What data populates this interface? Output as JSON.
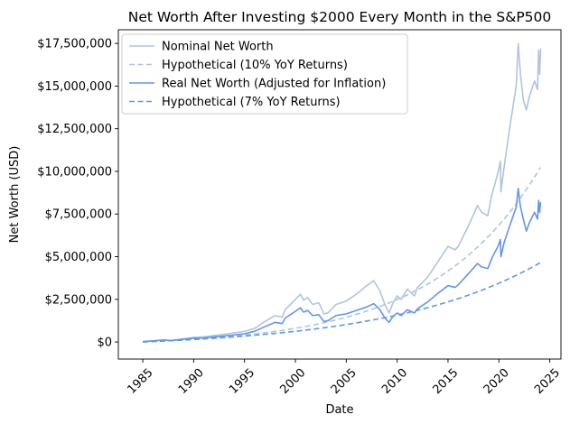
{
  "chart_data": {
    "type": "line",
    "title": "Net Worth After Investing $2000 Every Month in the S&P500",
    "xlabel": "Date",
    "ylabel": "Net Worth (USD)",
    "xlim": [
      1982.6,
      2026.1
    ],
    "ylim": [
      -1000000,
      18300000
    ],
    "x_ticks": [
      1985,
      1990,
      1995,
      2000,
      2005,
      2010,
      2015,
      2020,
      2025
    ],
    "x_tick_labels": [
      "1985",
      "1990",
      "1995",
      "2000",
      "2005",
      "2010",
      "2015",
      "2020",
      "2025"
    ],
    "y_ticks": [
      0,
      2500000,
      5000000,
      7500000,
      10000000,
      12500000,
      15000000,
      17500000
    ],
    "y_tick_labels": [
      "$0",
      "$2,500,000",
      "$5,000,000",
      "$7,500,000",
      "$10,000,000",
      "$12,500,000",
      "$15,000,000",
      "$17,500,000"
    ],
    "legend_position": "upper-left",
    "series": [
      {
        "name": "Nominal Net Worth",
        "color": "#b0c4de",
        "dash": "solid",
        "points": [
          [
            1985,
            20000
          ],
          [
            1987,
            120000
          ],
          [
            1987.8,
            90000
          ],
          [
            1990,
            270000
          ],
          [
            1991,
            300000
          ],
          [
            1993,
            450000
          ],
          [
            1995,
            620000
          ],
          [
            1996,
            800000
          ],
          [
            1997,
            1200000
          ],
          [
            1998,
            1550000
          ],
          [
            1998.7,
            1450000
          ],
          [
            1999,
            1900000
          ],
          [
            2000,
            2500000
          ],
          [
            2000.5,
            2800000
          ],
          [
            2000.8,
            2450000
          ],
          [
            2001.2,
            2600000
          ],
          [
            2001.7,
            2200000
          ],
          [
            2002.3,
            2300000
          ],
          [
            2002.8,
            1650000
          ],
          [
            2003.2,
            1700000
          ],
          [
            2004,
            2200000
          ],
          [
            2005,
            2400000
          ],
          [
            2006,
            2800000
          ],
          [
            2007,
            3300000
          ],
          [
            2007.7,
            3600000
          ],
          [
            2008.3,
            3000000
          ],
          [
            2008.8,
            2200000
          ],
          [
            2009.2,
            1700000
          ],
          [
            2009.6,
            2300000
          ],
          [
            2010,
            2700000
          ],
          [
            2010.4,
            2500000
          ],
          [
            2011,
            3100000
          ],
          [
            2011.7,
            2700000
          ],
          [
            2012,
            3200000
          ],
          [
            2013,
            3800000
          ],
          [
            2014,
            4700000
          ],
          [
            2015,
            5600000
          ],
          [
            2015.7,
            5400000
          ],
          [
            2016,
            5600000
          ],
          [
            2017,
            6800000
          ],
          [
            2017.9,
            8000000
          ],
          [
            2018.3,
            7600000
          ],
          [
            2018.9,
            7400000
          ],
          [
            2019.3,
            8600000
          ],
          [
            2019.9,
            9900000
          ],
          [
            2020.15,
            10600000
          ],
          [
            2020.2,
            8800000
          ],
          [
            2020.5,
            10200000
          ],
          [
            2021,
            12300000
          ],
          [
            2021.7,
            15000000
          ],
          [
            2021.9,
            17500000
          ],
          [
            2022.1,
            15800000
          ],
          [
            2022.4,
            14200000
          ],
          [
            2022.7,
            13600000
          ],
          [
            2023,
            14400000
          ],
          [
            2023.5,
            15300000
          ],
          [
            2023.8,
            14800000
          ],
          [
            2023.9,
            17100000
          ],
          [
            2024,
            15700000
          ],
          [
            2024.1,
            17200000
          ]
        ]
      },
      {
        "name": "Hypothetical (10% YoY Returns)",
        "color": "#b0c4de",
        "dash": "dashed",
        "formula_rate": 0.1
      },
      {
        "name": "Real Net Worth (Adjusted for Inflation)",
        "color": "#6495ed",
        "dash": "solid",
        "points": [
          [
            1985,
            20000
          ],
          [
            1987,
            110000
          ],
          [
            1987.8,
            85000
          ],
          [
            1990,
            220000
          ],
          [
            1991,
            240000
          ],
          [
            1993,
            350000
          ],
          [
            1995,
            480000
          ],
          [
            1996,
            630000
          ],
          [
            1997,
            900000
          ],
          [
            1998,
            1150000
          ],
          [
            1998.7,
            1080000
          ],
          [
            1999,
            1400000
          ],
          [
            2000,
            1800000
          ],
          [
            2000.5,
            2000000
          ],
          [
            2000.8,
            1750000
          ],
          [
            2001.2,
            1850000
          ],
          [
            2001.7,
            1550000
          ],
          [
            2002.3,
            1600000
          ],
          [
            2002.8,
            1200000
          ],
          [
            2003.2,
            1250000
          ],
          [
            2004,
            1550000
          ],
          [
            2005,
            1650000
          ],
          [
            2006,
            1850000
          ],
          [
            2007,
            2050000
          ],
          [
            2007.7,
            2250000
          ],
          [
            2008.3,
            1900000
          ],
          [
            2008.8,
            1400000
          ],
          [
            2009.2,
            1150000
          ],
          [
            2009.6,
            1500000
          ],
          [
            2010,
            1700000
          ],
          [
            2010.4,
            1550000
          ],
          [
            2011,
            1900000
          ],
          [
            2011.7,
            1700000
          ],
          [
            2012,
            1950000
          ],
          [
            2013,
            2350000
          ],
          [
            2014,
            2850000
          ],
          [
            2015,
            3300000
          ],
          [
            2015.7,
            3200000
          ],
          [
            2016,
            3350000
          ],
          [
            2017,
            4000000
          ],
          [
            2017.9,
            4600000
          ],
          [
            2018.3,
            4400000
          ],
          [
            2018.9,
            4300000
          ],
          [
            2019.3,
            4900000
          ],
          [
            2019.9,
            5600000
          ],
          [
            2020.15,
            6000000
          ],
          [
            2020.2,
            5000000
          ],
          [
            2020.5,
            5800000
          ],
          [
            2021,
            6700000
          ],
          [
            2021.7,
            7900000
          ],
          [
            2021.9,
            9000000
          ],
          [
            2022.1,
            8000000
          ],
          [
            2022.4,
            7200000
          ],
          [
            2022.7,
            6500000
          ],
          [
            2023,
            7000000
          ],
          [
            2023.5,
            7600000
          ],
          [
            2023.8,
            7200000
          ],
          [
            2023.9,
            8300000
          ],
          [
            2024,
            7600000
          ],
          [
            2024.1,
            8200000
          ]
        ]
      },
      {
        "name": "Hypothetical (7% YoY Returns)",
        "color": "#6495ed",
        "dash": "dashed",
        "formula_rate": 0.07
      }
    ],
    "hypothetical_model": {
      "start_year": 1985,
      "end_year": 2024.1,
      "monthly_contribution": 2000
    }
  }
}
